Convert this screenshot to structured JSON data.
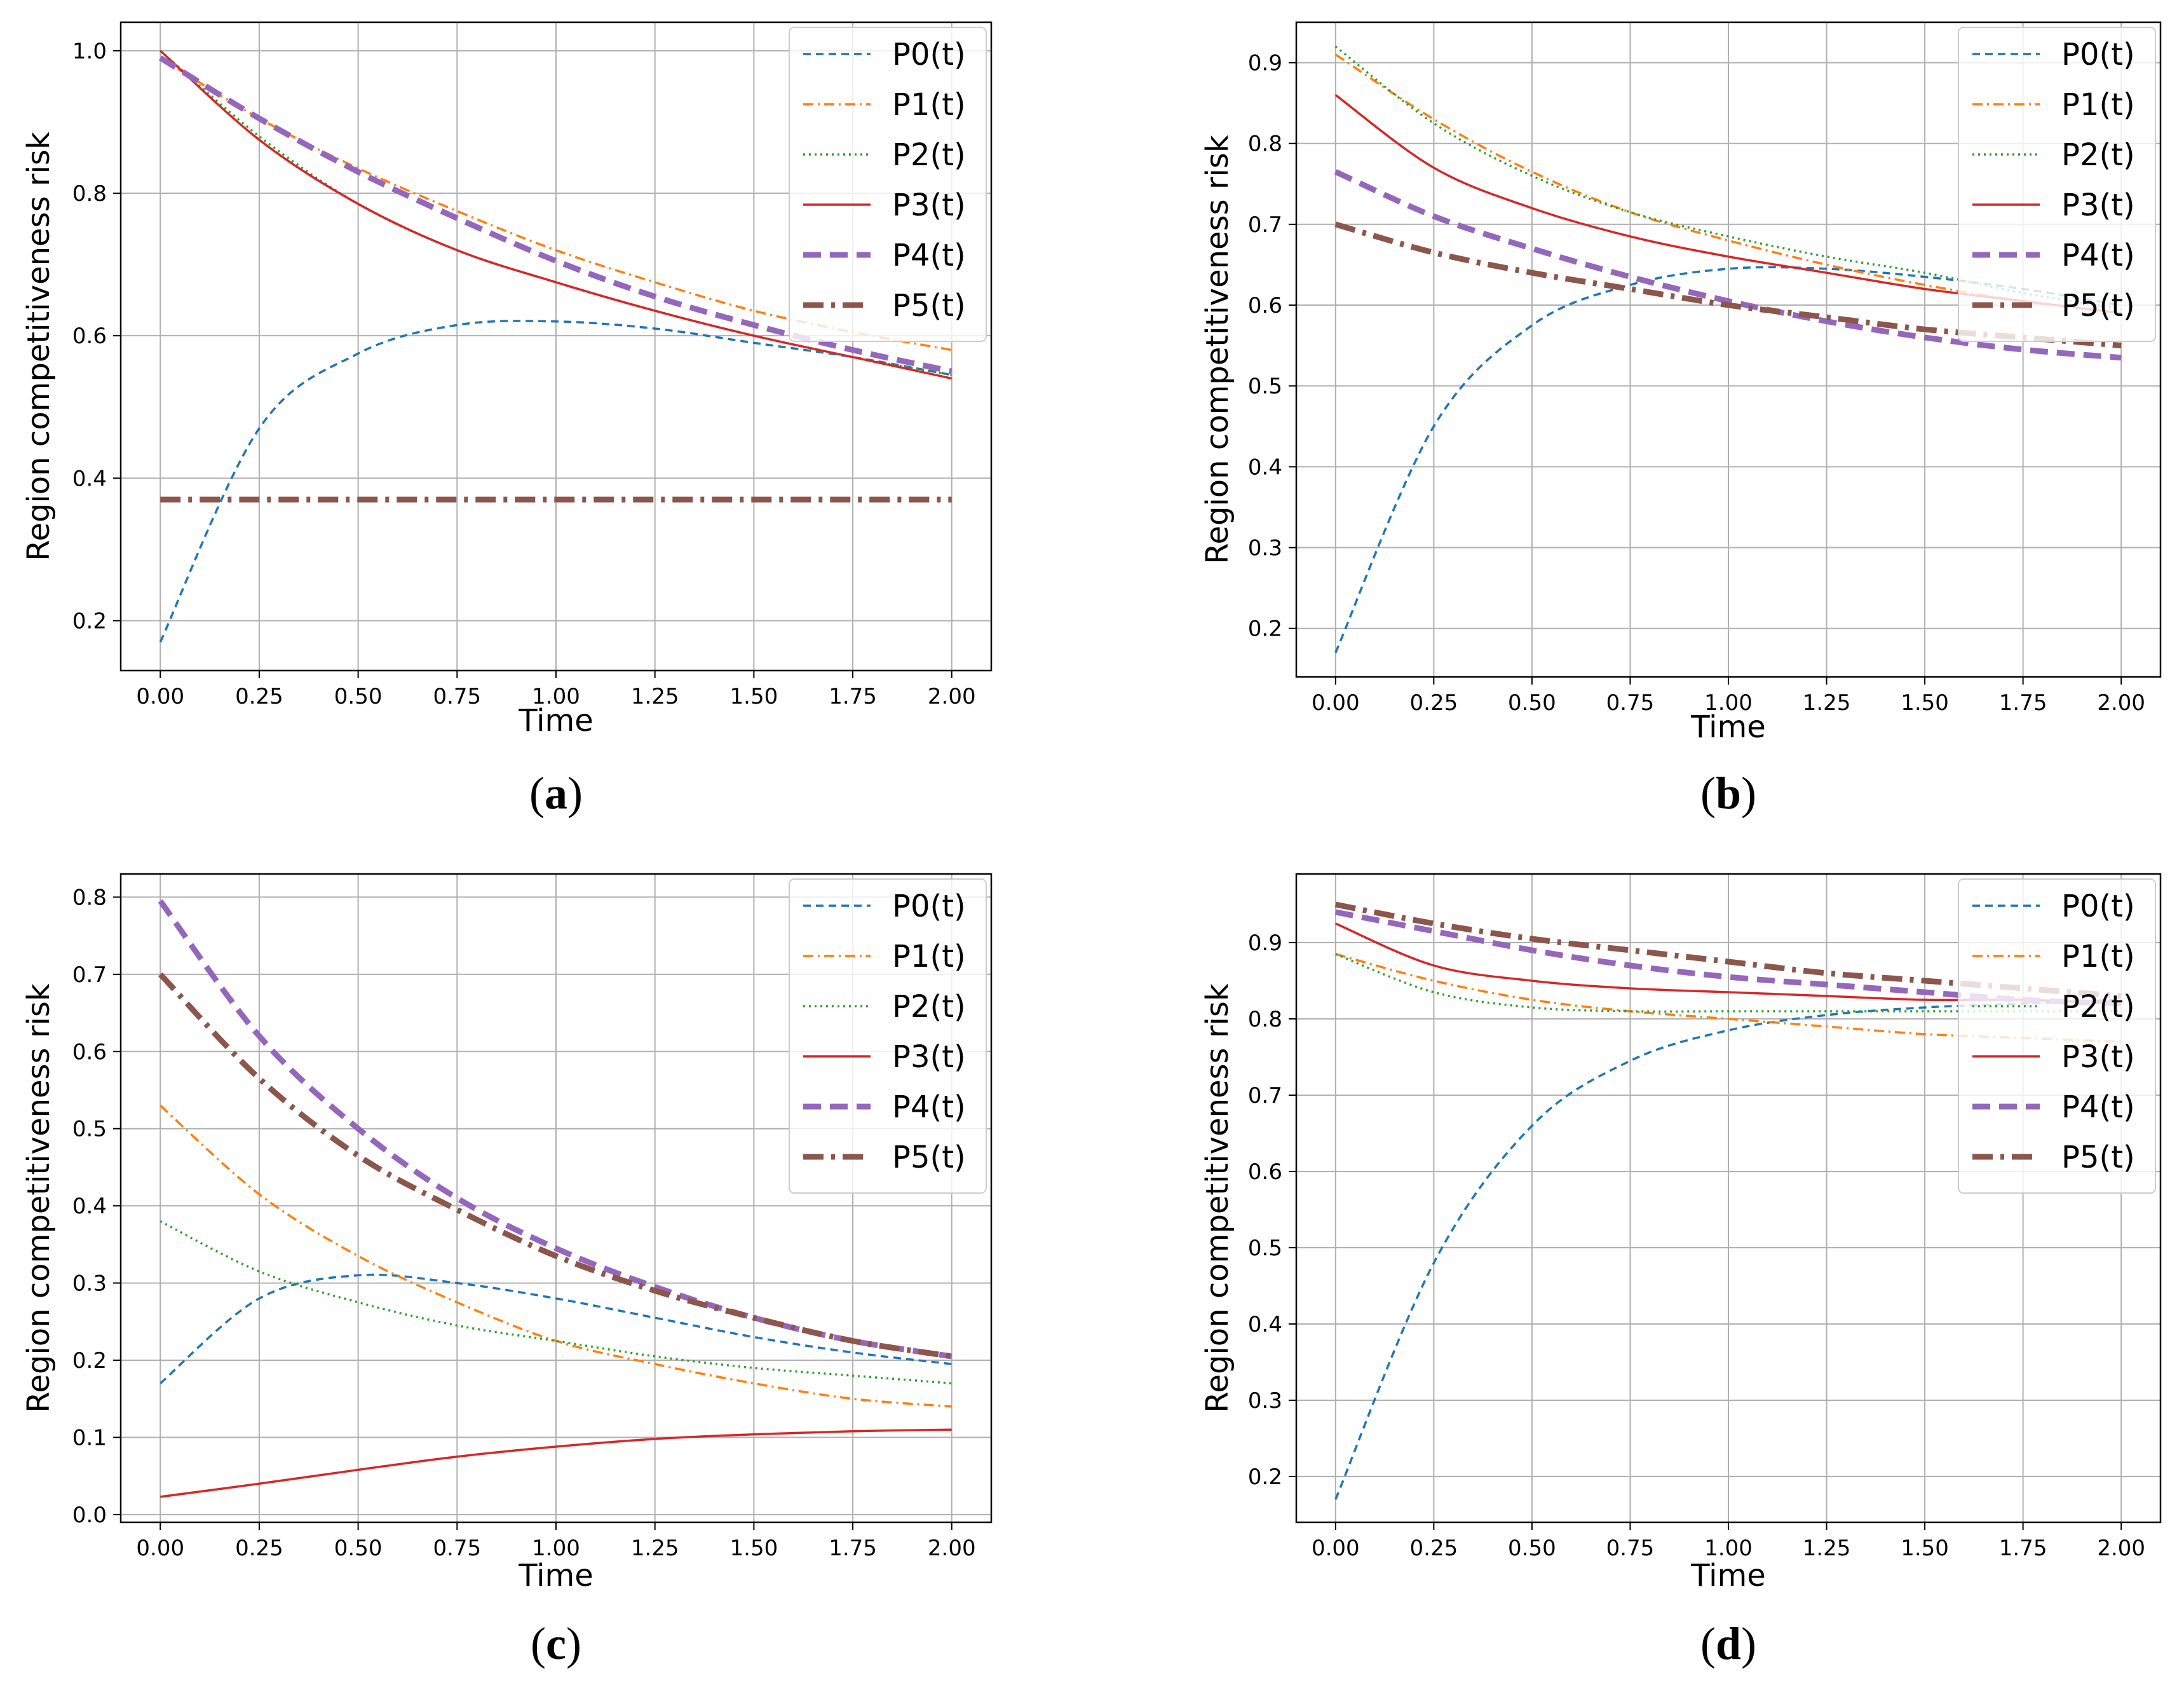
{
  "figure": {
    "ylabel": "Region competitiveness risk",
    "xlabel": "Time"
  },
  "chart_data": [
    {
      "type": "line",
      "panel": "a",
      "panel_label_letter": "a",
      "xlabel": "Time",
      "ylabel": "Region competitiveness risk",
      "xlim": [
        -0.1,
        2.1
      ],
      "ylim": [
        0.13,
        1.04
      ],
      "xticks": [
        "0.00",
        "0.25",
        "0.50",
        "0.75",
        "1.00",
        "1.25",
        "1.50",
        "1.75",
        "2.00"
      ],
      "yticks": [
        "0.2",
        "0.4",
        "0.6",
        "0.8",
        "1.0"
      ],
      "grid": true,
      "legend_position": "top-right",
      "x": [
        0,
        0.25,
        0.5,
        0.75,
        1.0,
        1.25,
        1.5,
        1.75,
        2.0
      ],
      "series": [
        {
          "name": "P0(t)",
          "values": [
            0.17,
            0.47,
            0.575,
            0.615,
            0.62,
            0.61,
            0.59,
            0.57,
            0.545
          ]
        },
        {
          "name": "P1(t)",
          "values": [
            0.99,
            0.905,
            0.835,
            0.775,
            0.72,
            0.675,
            0.635,
            0.605,
            0.58
          ]
        },
        {
          "name": "P2(t)",
          "values": [
            1.0,
            0.88,
            0.785,
            0.72,
            0.675,
            0.635,
            0.6,
            0.57,
            0.545
          ]
        },
        {
          "name": "P3(t)",
          "values": [
            1.0,
            0.875,
            0.785,
            0.72,
            0.675,
            0.635,
            0.6,
            0.57,
            0.54
          ]
        },
        {
          "name": "P4(t)",
          "values": [
            0.99,
            0.905,
            0.83,
            0.765,
            0.705,
            0.655,
            0.615,
            0.58,
            0.55
          ]
        },
        {
          "name": "P5(t)",
          "values": [
            0.37,
            0.37,
            0.37,
            0.37,
            0.37,
            0.37,
            0.37,
            0.37,
            0.37
          ]
        }
      ]
    },
    {
      "type": "line",
      "panel": "b",
      "panel_label_letter": "b",
      "xlabel": "Time",
      "ylabel": "Region competitiveness risk",
      "xlim": [
        -0.1,
        2.1
      ],
      "ylim": [
        0.14,
        0.95
      ],
      "xticks": [
        "0.00",
        "0.25",
        "0.50",
        "0.75",
        "1.00",
        "1.25",
        "1.50",
        "1.75",
        "2.00"
      ],
      "yticks": [
        "0.2",
        "0.3",
        "0.4",
        "0.5",
        "0.6",
        "0.7",
        "0.8",
        "0.9"
      ],
      "grid": true,
      "legend_position": "top-right",
      "x": [
        0,
        0.25,
        0.5,
        0.75,
        1.0,
        1.25,
        1.5,
        1.75,
        2.0
      ],
      "series": [
        {
          "name": "P0(t)",
          "values": [
            0.17,
            0.45,
            0.575,
            0.625,
            0.645,
            0.645,
            0.635,
            0.62,
            0.6
          ]
        },
        {
          "name": "P1(t)",
          "values": [
            0.91,
            0.83,
            0.765,
            0.715,
            0.68,
            0.65,
            0.625,
            0.605,
            0.59
          ]
        },
        {
          "name": "P2(t)",
          "values": [
            0.92,
            0.825,
            0.76,
            0.715,
            0.685,
            0.66,
            0.64,
            0.615,
            0.595
          ]
        },
        {
          "name": "P3(t)",
          "values": [
            0.86,
            0.77,
            0.72,
            0.685,
            0.66,
            0.64,
            0.62,
            0.605,
            0.59
          ]
        },
        {
          "name": "P4(t)",
          "values": [
            0.765,
            0.71,
            0.67,
            0.635,
            0.605,
            0.58,
            0.56,
            0.545,
            0.535
          ]
        },
        {
          "name": "P5(t)",
          "values": [
            0.7,
            0.665,
            0.64,
            0.62,
            0.6,
            0.585,
            0.57,
            0.56,
            0.55
          ]
        }
      ]
    },
    {
      "type": "line",
      "panel": "c",
      "panel_label_letter": "c",
      "xlabel": "Time",
      "ylabel": "Region competitiveness risk",
      "xlim": [
        -0.1,
        2.1
      ],
      "ylim": [
        -0.01,
        0.83
      ],
      "xticks": [
        "0.00",
        "0.25",
        "0.50",
        "0.75",
        "1.00",
        "1.25",
        "1.50",
        "1.75",
        "2.00"
      ],
      "yticks": [
        "0.0",
        "0.1",
        "0.2",
        "0.3",
        "0.4",
        "0.5",
        "0.6",
        "0.7",
        "0.8"
      ],
      "grid": true,
      "legend_position": "top-right",
      "x": [
        0,
        0.25,
        0.5,
        0.75,
        1.0,
        1.25,
        1.5,
        1.75,
        2.0
      ],
      "series": [
        {
          "name": "P0(t)",
          "values": [
            0.17,
            0.28,
            0.31,
            0.3,
            0.28,
            0.255,
            0.23,
            0.21,
            0.195
          ]
        },
        {
          "name": "P1(t)",
          "values": [
            0.53,
            0.415,
            0.335,
            0.275,
            0.225,
            0.195,
            0.17,
            0.15,
            0.14
          ]
        },
        {
          "name": "P2(t)",
          "values": [
            0.38,
            0.315,
            0.275,
            0.245,
            0.225,
            0.205,
            0.19,
            0.18,
            0.17
          ]
        },
        {
          "name": "P3(t)",
          "values": [
            0.023,
            0.04,
            0.058,
            0.075,
            0.088,
            0.098,
            0.104,
            0.108,
            0.11
          ]
        },
        {
          "name": "P4(t)",
          "values": [
            0.795,
            0.62,
            0.5,
            0.41,
            0.345,
            0.295,
            0.255,
            0.225,
            0.205
          ]
        },
        {
          "name": "P5(t)",
          "values": [
            0.7,
            0.565,
            0.465,
            0.395,
            0.335,
            0.29,
            0.255,
            0.225,
            0.205
          ]
        }
      ]
    },
    {
      "type": "line",
      "panel": "d",
      "panel_label_letter": "d",
      "xlabel": "Time",
      "ylabel": "Region competitiveness risk",
      "xlim": [
        -0.1,
        2.1
      ],
      "ylim": [
        0.14,
        0.99
      ],
      "xticks": [
        "0.00",
        "0.25",
        "0.50",
        "0.75",
        "1.00",
        "1.25",
        "1.50",
        "1.75",
        "2.00"
      ],
      "yticks": [
        "0.2",
        "0.3",
        "0.4",
        "0.5",
        "0.6",
        "0.7",
        "0.8",
        "0.9"
      ],
      "grid": true,
      "legend_position": "top-right",
      "x": [
        0,
        0.25,
        0.5,
        0.75,
        1.0,
        1.25,
        1.5,
        1.75,
        2.0
      ],
      "series": [
        {
          "name": "P0(t)",
          "values": [
            0.17,
            0.48,
            0.66,
            0.745,
            0.785,
            0.805,
            0.815,
            0.82,
            0.825
          ]
        },
        {
          "name": "P1(t)",
          "values": [
            0.885,
            0.85,
            0.825,
            0.81,
            0.8,
            0.79,
            0.78,
            0.775,
            0.77
          ]
        },
        {
          "name": "P2(t)",
          "values": [
            0.885,
            0.835,
            0.815,
            0.81,
            0.81,
            0.81,
            0.81,
            0.81,
            0.81
          ]
        },
        {
          "name": "P3(t)",
          "values": [
            0.925,
            0.87,
            0.85,
            0.84,
            0.835,
            0.83,
            0.825,
            0.825,
            0.82
          ]
        },
        {
          "name": "P4(t)",
          "values": [
            0.94,
            0.915,
            0.89,
            0.87,
            0.855,
            0.845,
            0.835,
            0.825,
            0.82
          ]
        },
        {
          "name": "P5(t)",
          "values": [
            0.95,
            0.925,
            0.905,
            0.89,
            0.875,
            0.86,
            0.85,
            0.84,
            0.83
          ]
        }
      ]
    }
  ],
  "series_styles": [
    {
      "name": "P0(t)",
      "color": "#1f77b4",
      "width": 3.5,
      "dash": "12,8"
    },
    {
      "name": "P1(t)",
      "color": "#ff7f0e",
      "width": 3.5,
      "dash": "16,7,3,7"
    },
    {
      "name": "P2(t)",
      "color": "#2ca02c",
      "width": 3.5,
      "dash": "3,6"
    },
    {
      "name": "P3(t)",
      "color": "#d62728",
      "width": 3.5,
      "dash": ""
    },
    {
      "name": "P4(t)",
      "color": "#9467bd",
      "width": 9,
      "dash": "28,14"
    },
    {
      "name": "P5(t)",
      "color": "#8c564b",
      "width": 9,
      "dash": "32,12,6,12"
    }
  ]
}
